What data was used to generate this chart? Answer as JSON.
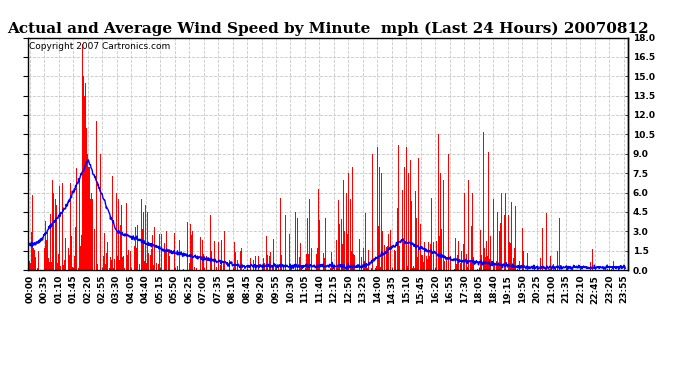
{
  "title": "Actual and Average Wind Speed by Minute  mph (Last 24 Hours) 20070812",
  "copyright": "Copyright 2007 Cartronics.com",
  "ylim": [
    0,
    18.0
  ],
  "yticks": [
    0.0,
    1.5,
    3.0,
    4.5,
    6.0,
    7.5,
    9.0,
    10.5,
    12.0,
    13.5,
    15.0,
    16.5,
    18.0
  ],
  "bar_color": "#FF0000",
  "line_color": "#0000FF",
  "background_color": "#FFFFFF",
  "grid_color": "#C8C8C8",
  "title_fontsize": 11,
  "copyright_fontsize": 6.5,
  "tick_label_fontsize": 6.5,
  "figsize": [
    6.9,
    3.75
  ],
  "dpi": 100
}
